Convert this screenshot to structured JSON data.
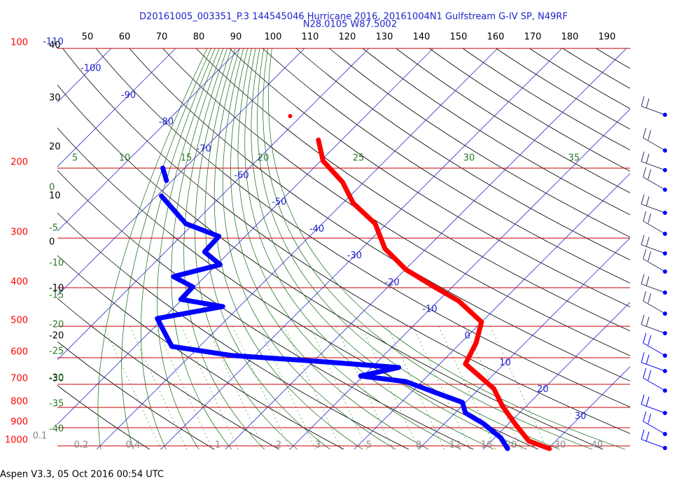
{
  "header": {
    "title": "D20161005_003351_P.3 144545046 Hurricane 2016, 20161004N1 Gulfstream G-IV SP, N49RF",
    "subtitle": "N28.0105 W87.5002"
  },
  "footer": "Aspen V3.3, 05 Oct 2016  00:54 UTC",
  "chart_data": {
    "type": "skewt",
    "pressure_ticks": [
      100,
      200,
      300,
      400,
      500,
      600,
      700,
      800,
      900,
      1000
    ],
    "isotherm_labels": [
      -110,
      -100,
      -90,
      -80,
      -70,
      -60,
      -50,
      -40,
      -30,
      -20,
      -10,
      0,
      10,
      20,
      30
    ],
    "top_scale": [
      50,
      60,
      70,
      80,
      90,
      100,
      110,
      120,
      130,
      140,
      150,
      160,
      170,
      180,
      190
    ],
    "left_scale": [
      40,
      30,
      20,
      10,
      0,
      -10,
      -20,
      -30
    ],
    "theta_labels": [
      5,
      10,
      15,
      20,
      25,
      30,
      35
    ],
    "theta_left_labels": [
      0,
      -5,
      -10,
      -15,
      -20,
      -25,
      -30,
      -35,
      -40
    ],
    "mixing_ratio_labels": [
      0.1,
      0.2,
      0.4,
      1,
      2,
      3,
      5,
      8,
      12,
      16,
      20,
      30,
      40
    ],
    "series": [
      {
        "color": "#ff0000",
        "pressure": [
          1016,
          972,
          878,
          794,
          717,
          622,
          551,
          488,
          432,
          398,
          360,
          319,
          276,
          245,
          217,
          192,
          170
        ],
        "temperature": [
          30.2,
          25.8,
          20.9,
          16.3,
          12.2,
          4.0,
          2.4,
          0.0,
          -6.8,
          -12.8,
          -19.9,
          -26.4,
          -31.8,
          -38.4,
          -43.3,
          -49.6,
          -53.6
        ]
      },
      {
        "color": "#0000ff",
        "pressure": [
          1016,
          953,
          878,
          826,
          777,
          732,
          689,
          667,
          635,
          612,
          592,
          562,
          478,
          446,
          428,
          398,
          375,
          350,
          325,
          297,
          276,
          235,
          null,
          215,
          200
        ],
        "temperature": [
          23.7,
          20.9,
          16.0,
          11.6,
          9.5,
          3.5,
          -2.5,
          -10.4,
          -5.8,
          -19.8,
          -33.7,
          -44.3,
          -50.9,
          -42.6,
          -50.2,
          -50.3,
          -54.9,
          -49.5,
          -53.9,
          -54.1,
          -61.2,
          -69.3,
          null,
          -70.9,
          -73.4
        ]
      },
      {
        "color": "#ff0000",
        "pressure": [
          148
        ],
        "temperature": [
          -61.7
        ]
      }
    ]
  }
}
